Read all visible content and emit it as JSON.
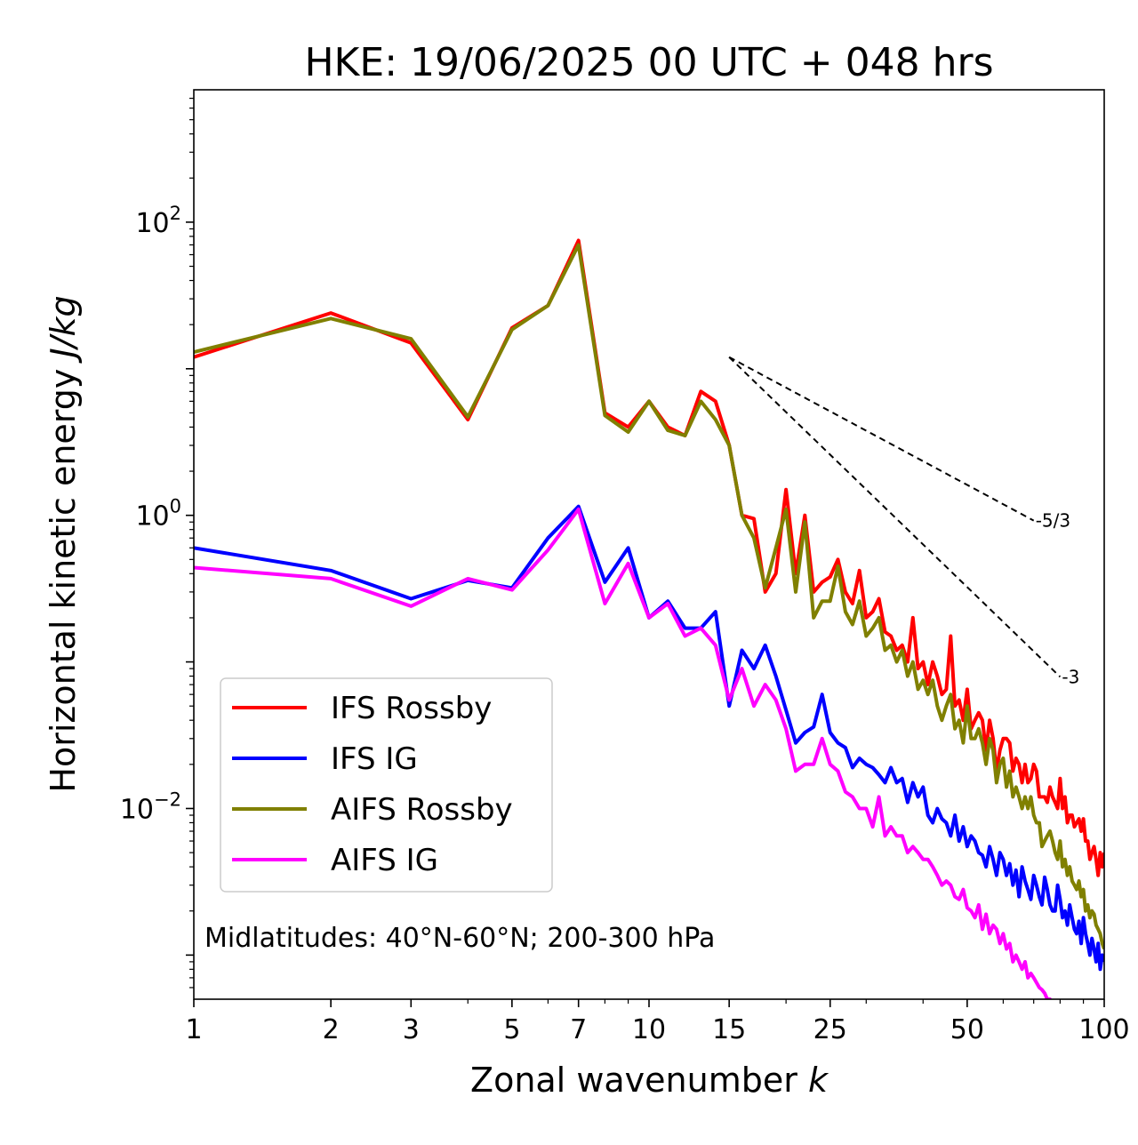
{
  "chart_data": {
    "type": "line",
    "title": "HKE: 19/06/2025 00 UTC + 048 hrs",
    "xlabel": "Zonal wavenumber",
    "xlabel_var": "k",
    "ylabel": "Horizontal kinetic energy",
    "ylabel_var": "J/kg",
    "xscale": "log",
    "yscale": "log",
    "xlim": [
      1,
      100
    ],
    "ylim": [
      0.0005,
      800
    ],
    "x_ticks": [
      {
        "value": 1,
        "label": "1"
      },
      {
        "value": 2,
        "label": "2"
      },
      {
        "value": 3,
        "label": "3"
      },
      {
        "value": 5,
        "label": "5"
      },
      {
        "value": 7,
        "label": "7"
      },
      {
        "value": 10,
        "label": "10"
      },
      {
        "value": 15,
        "label": "15"
      },
      {
        "value": 25,
        "label": "25"
      },
      {
        "value": 50,
        "label": "50"
      },
      {
        "value": 100,
        "label": "100"
      }
    ],
    "y_ticks": [
      {
        "value": 100,
        "base": "10",
        "exp": "2"
      },
      {
        "value": 1,
        "base": "10",
        "exp": "0"
      },
      {
        "value": 0.01,
        "base": "10",
        "exp": "−2"
      }
    ],
    "grid": false,
    "legend_position": "lower-left",
    "annotation": "Midlatitudes: 40°N-60°N; 200-300 hPa",
    "reference_lines": [
      {
        "label": "-5/3",
        "slope": -1.6667,
        "x": [
          15,
          70
        ],
        "y0": 12.0
      },
      {
        "label": "-3",
        "slope": -3,
        "x": [
          15,
          80
        ],
        "y0": 12.0
      }
    ],
    "series": [
      {
        "name": "IFS Rossby",
        "color": "#ff0000",
        "x": [
          1,
          2,
          3,
          4,
          5,
          6,
          7,
          8,
          9,
          10,
          11,
          12,
          13,
          14,
          15,
          16,
          17,
          18,
          19,
          20,
          21,
          22,
          23,
          24,
          25,
          26,
          27,
          28,
          29,
          30,
          31,
          32,
          33,
          34,
          35,
          36,
          37,
          38,
          39,
          40,
          41,
          42,
          43,
          44,
          45,
          46,
          47,
          48,
          49,
          50,
          51,
          52,
          53,
          54,
          55,
          56,
          57,
          58,
          59,
          60,
          61,
          62,
          63,
          64,
          65,
          66,
          67,
          68,
          69,
          70,
          71,
          72,
          73,
          74,
          75,
          76,
          77,
          78,
          79,
          80,
          81,
          82,
          83,
          84,
          85,
          86,
          87,
          88,
          89,
          90,
          91,
          92,
          93,
          94,
          95,
          96,
          97,
          98,
          99,
          100
        ],
        "y": [
          12.0,
          24.0,
          15.0,
          4.5,
          19.0,
          27.0,
          75.0,
          5.0,
          4.0,
          6.0,
          4.0,
          3.5,
          7.0,
          6.0,
          3.0,
          1.0,
          0.95,
          0.3,
          0.4,
          1.5,
          0.4,
          1.0,
          0.3,
          0.35,
          0.38,
          0.5,
          0.3,
          0.25,
          0.42,
          0.2,
          0.22,
          0.27,
          0.16,
          0.15,
          0.12,
          0.13,
          0.1,
          0.2,
          0.09,
          0.1,
          0.07,
          0.1,
          0.08,
          0.06,
          0.065,
          0.15,
          0.05,
          0.055,
          0.04,
          0.065,
          0.035,
          0.04,
          0.045,
          0.04,
          0.025,
          0.04,
          0.03,
          0.018,
          0.025,
          0.03,
          0.03,
          0.028,
          0.018,
          0.022,
          0.02,
          0.015,
          0.02,
          0.015,
          0.016,
          0.02,
          0.018,
          0.012,
          0.012,
          0.012,
          0.011,
          0.014,
          0.012,
          0.011,
          0.01,
          0.016,
          0.01,
          0.012,
          0.008,
          0.009,
          0.009,
          0.0075,
          0.008,
          0.0085,
          0.007,
          0.0085,
          0.006,
          0.006,
          0.0045,
          0.005,
          0.0055,
          0.0045,
          0.0035,
          0.005,
          0.004,
          0.005
        ]
      },
      {
        "name": "IFS IG",
        "color": "#0000ff",
        "x": [
          1,
          2,
          3,
          4,
          5,
          6,
          7,
          8,
          9,
          10,
          11,
          12,
          13,
          14,
          15,
          16,
          17,
          18,
          19,
          20,
          21,
          22,
          23,
          24,
          25,
          26,
          27,
          28,
          29,
          30,
          31,
          32,
          33,
          34,
          35,
          36,
          37,
          38,
          39,
          40,
          41,
          42,
          43,
          44,
          45,
          46,
          47,
          48,
          49,
          50,
          51,
          52,
          53,
          54,
          55,
          56,
          57,
          58,
          59,
          60,
          61,
          62,
          63,
          64,
          65,
          66,
          67,
          68,
          69,
          70,
          71,
          72,
          73,
          74,
          75,
          76,
          77,
          78,
          79,
          80,
          81,
          82,
          83,
          84,
          85,
          86,
          87,
          88,
          89,
          90,
          91,
          92,
          93,
          94,
          95,
          96,
          97,
          98,
          99,
          100
        ],
        "y": [
          0.6,
          0.42,
          0.27,
          0.36,
          0.32,
          0.7,
          1.15,
          0.35,
          0.6,
          0.2,
          0.26,
          0.17,
          0.17,
          0.22,
          0.05,
          0.12,
          0.09,
          0.13,
          0.08,
          0.047,
          0.028,
          0.033,
          0.036,
          0.06,
          0.033,
          0.028,
          0.026,
          0.019,
          0.022,
          0.02,
          0.019,
          0.017,
          0.015,
          0.019,
          0.015,
          0.016,
          0.011,
          0.015,
          0.012,
          0.014,
          0.009,
          0.008,
          0.01,
          0.0085,
          0.008,
          0.0065,
          0.009,
          0.006,
          0.0075,
          0.0055,
          0.0065,
          0.006,
          0.005,
          0.0048,
          0.004,
          0.0055,
          0.0045,
          0.0035,
          0.005,
          0.0045,
          0.0035,
          0.0042,
          0.003,
          0.0038,
          0.0025,
          0.004,
          0.0032,
          0.0028,
          0.0024,
          0.0035,
          0.003,
          0.0025,
          0.0022,
          0.0034,
          0.0028,
          0.0022,
          0.002,
          0.002,
          0.003,
          0.0024,
          0.0018,
          0.002,
          0.0016,
          0.0022,
          0.0018,
          0.0015,
          0.0014,
          0.0017,
          0.0012,
          0.0018,
          0.0014,
          0.0012,
          0.001,
          0.0013,
          0.0011,
          0.0009,
          0.0012,
          0.0008,
          0.001,
          0.0009
        ]
      },
      {
        "name": "AIFS Rossby",
        "color": "#808000",
        "x": [
          1,
          2,
          3,
          4,
          5,
          6,
          7,
          8,
          9,
          10,
          11,
          12,
          13,
          14,
          15,
          16,
          17,
          18,
          19,
          20,
          21,
          22,
          23,
          24,
          25,
          26,
          27,
          28,
          29,
          30,
          31,
          32,
          33,
          34,
          35,
          36,
          37,
          38,
          39,
          40,
          41,
          42,
          43,
          44,
          45,
          46,
          47,
          48,
          49,
          50,
          51,
          52,
          53,
          54,
          55,
          56,
          57,
          58,
          59,
          60,
          61,
          62,
          63,
          64,
          65,
          66,
          67,
          68,
          69,
          70,
          71,
          72,
          73,
          74,
          75,
          76,
          77,
          78,
          79,
          80,
          81,
          82,
          83,
          84,
          85,
          86,
          87,
          88,
          89,
          90,
          91,
          92,
          93,
          94,
          95,
          96,
          97,
          98,
          99,
          100
        ],
        "y": [
          13.0,
          22.0,
          16.0,
          4.7,
          18.5,
          27.0,
          70.0,
          4.8,
          3.7,
          6.0,
          3.8,
          3.5,
          6.0,
          4.5,
          3.0,
          1.0,
          0.7,
          0.32,
          0.6,
          1.1,
          0.3,
          0.9,
          0.2,
          0.26,
          0.26,
          0.45,
          0.22,
          0.18,
          0.26,
          0.15,
          0.17,
          0.2,
          0.12,
          0.13,
          0.1,
          0.12,
          0.08,
          0.1,
          0.065,
          0.075,
          0.06,
          0.075,
          0.05,
          0.04,
          0.05,
          0.06,
          0.035,
          0.04,
          0.028,
          0.05,
          0.03,
          0.03,
          0.035,
          0.028,
          0.02,
          0.03,
          0.025,
          0.015,
          0.02,
          0.022,
          0.014,
          0.018,
          0.012,
          0.014,
          0.012,
          0.01,
          0.012,
          0.01,
          0.012,
          0.009,
          0.008,
          0.008,
          0.0055,
          0.006,
          0.0065,
          0.007,
          0.006,
          0.005,
          0.0045,
          0.006,
          0.004,
          0.0045,
          0.0035,
          0.004,
          0.0032,
          0.003,
          0.0028,
          0.0032,
          0.0025,
          0.0028,
          0.002,
          0.0022,
          0.0018,
          0.002,
          0.0019,
          0.0016,
          0.0015,
          0.0014,
          0.0012,
          0.0011
        ]
      },
      {
        "name": "AIFS IG",
        "color": "#ff00ff",
        "x": [
          1,
          2,
          3,
          4,
          5,
          6,
          7,
          8,
          9,
          10,
          11,
          12,
          13,
          14,
          15,
          16,
          17,
          18,
          19,
          20,
          21,
          22,
          23,
          24,
          25,
          26,
          27,
          28,
          29,
          30,
          31,
          32,
          33,
          34,
          35,
          36,
          37,
          38,
          39,
          40,
          41,
          42,
          43,
          44,
          45,
          46,
          47,
          48,
          49,
          50,
          51,
          52,
          53,
          54,
          55,
          56,
          57,
          58,
          59,
          60,
          61,
          62,
          63,
          64,
          65,
          66,
          67,
          68,
          69,
          70,
          71,
          72,
          73,
          74,
          75,
          76,
          77,
          78,
          79,
          80
        ],
        "y": [
          0.44,
          0.37,
          0.24,
          0.37,
          0.31,
          0.58,
          1.1,
          0.25,
          0.47,
          0.2,
          0.25,
          0.15,
          0.17,
          0.13,
          0.055,
          0.09,
          0.05,
          0.07,
          0.055,
          0.035,
          0.018,
          0.02,
          0.02,
          0.03,
          0.02,
          0.018,
          0.013,
          0.012,
          0.01,
          0.01,
          0.0075,
          0.012,
          0.0065,
          0.0075,
          0.0065,
          0.0065,
          0.005,
          0.0055,
          0.005,
          0.0045,
          0.0045,
          0.004,
          0.0035,
          0.003,
          0.0032,
          0.003,
          0.0025,
          0.0024,
          0.0028,
          0.0021,
          0.002,
          0.0018,
          0.0022,
          0.0015,
          0.0019,
          0.0014,
          0.0016,
          0.0015,
          0.0012,
          0.0014,
          0.0011,
          0.0012,
          0.0009,
          0.001,
          0.0009,
          0.0008,
          0.0009,
          0.0007,
          0.00075,
          0.0007,
          0.00065,
          0.0006,
          0.00058,
          0.00055,
          0.0005,
          0.0005,
          0.00048,
          0.00046,
          0.00044,
          0.00042
        ]
      }
    ]
  }
}
